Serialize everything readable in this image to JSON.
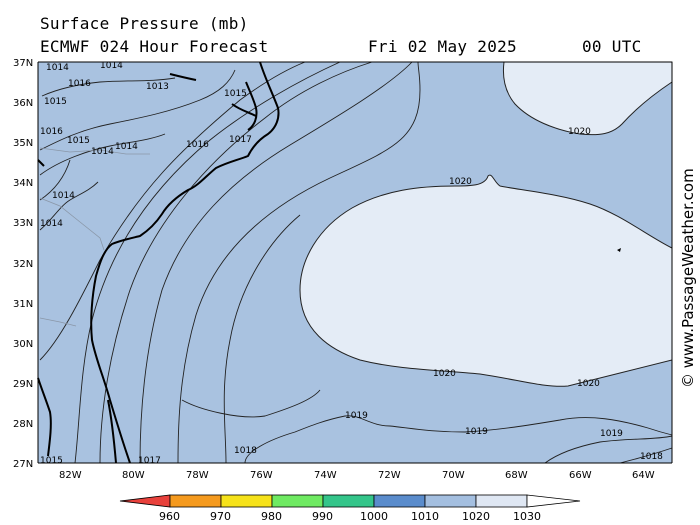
{
  "header": {
    "title": "Surface Pressure (mb)",
    "model": "ECMWF 024 Hour Forecast",
    "date": "Fri 02 May 2025",
    "time": "00 UTC"
  },
  "credit": "© www.PassageWeather.com",
  "colors": {
    "fill_1010_1020": "#a9c2e0",
    "fill_1020_1030": "#e4ecf6",
    "land": "#a9c2e0",
    "isobar": "#222222",
    "coast": "#000000"
  },
  "map": {
    "lat_labels": [
      "37N",
      "36N",
      "35N",
      "34N",
      "33N",
      "32N",
      "31N",
      "30N",
      "29N",
      "28N",
      "27N"
    ],
    "lon_labels": [
      "82W",
      "80W",
      "78W",
      "76W",
      "74W",
      "72W",
      "70W",
      "68W",
      "66W",
      "64W"
    ],
    "isobar_labels": [
      "1014",
      "1014",
      "1016",
      "1015",
      "1013",
      "1015",
      "1016",
      "1017",
      "1015",
      "1014",
      "1014",
      "1014",
      "1014",
      "1016",
      "1020",
      "1020",
      "1020",
      "1020",
      "1019",
      "1019",
      "1018",
      "1017",
      "1015",
      "1019",
      "1018"
    ]
  },
  "colorbar": {
    "labels": [
      "960",
      "970",
      "980",
      "990",
      "1000",
      "1010",
      "1020",
      "1030"
    ],
    "colors": [
      "#e8413c",
      "#f59a1e",
      "#f6e21a",
      "#6fea62",
      "#34c58a",
      "#5a8ccc",
      "#a4bfe0",
      "#dfe7f3",
      "#ffffff"
    ]
  }
}
